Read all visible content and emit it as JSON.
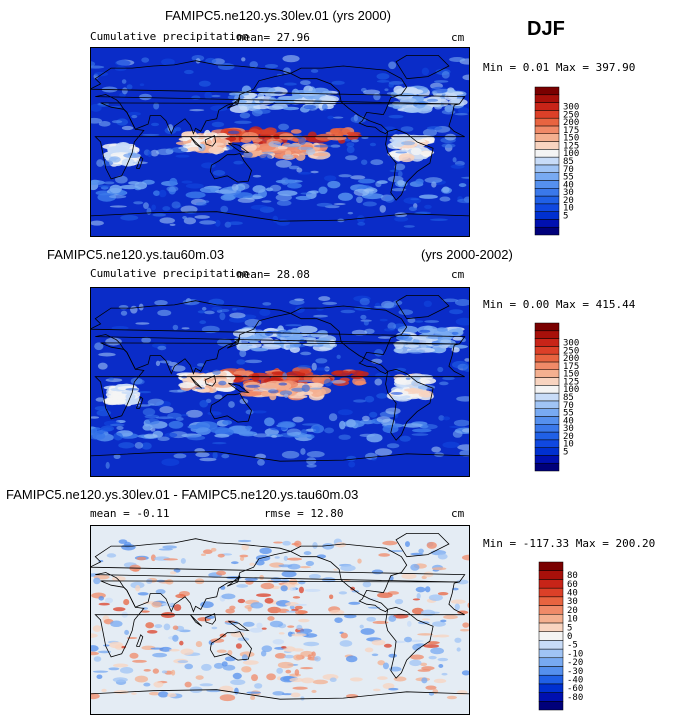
{
  "season": "DJF",
  "colors": {
    "precip_scale": [
      "#00007a",
      "#0010b0",
      "#0030d0",
      "#1048e0",
      "#2060e6",
      "#3a78ea",
      "#5590ee",
      "#78aaf2",
      "#a0c4f5",
      "#c8dcf8",
      "#f4f4f4",
      "#f8d4c0",
      "#f4b090",
      "#f08a68",
      "#e86440",
      "#dc4028",
      "#c82418",
      "#a8100a",
      "#7a0000"
    ],
    "diff_scale": [
      "#00007a",
      "#0010b0",
      "#0030d0",
      "#2060e6",
      "#5590ee",
      "#78aaf2",
      "#a0c4f5",
      "#c8dcf8",
      "#f4f4f4",
      "#f8d4c0",
      "#f4b090",
      "#f08a68",
      "#e86440",
      "#dc4028",
      "#c82418",
      "#a8100a",
      "#7a0000"
    ],
    "ocean_base": "#0a2cc8",
    "diff_base": "#e4ecf4"
  },
  "panels": [
    {
      "title": "FAMIPC5.ne120.ys.30lev.01 (yrs 2000)",
      "title_right": "",
      "subtitle": "Cumulative precipitation",
      "mean_text": "mean=  27.96",
      "rmse_text": "",
      "units": "cm",
      "minmax": "Min =   0.01 Max = 397.90"
    },
    {
      "title": "FAMIPC5.ne120.ys.tau60m.03",
      "title_right": "(yrs 2000-2002)",
      "subtitle": "Cumulative precipitation",
      "mean_text": "mean=  28.08",
      "rmse_text": "",
      "units": "cm",
      "minmax": "Min =   0.00 Max = 415.44"
    },
    {
      "title": "FAMIPC5.ne120.ys.30lev.01 - FAMIPC5.ne120.ys.tau60m.03",
      "title_right": "",
      "subtitle": "",
      "mean_text": "mean =  -0.11",
      "rmse_text": "rmse =  12.80",
      "units": "cm",
      "minmax": "Min = -117.33 Max = 200.20"
    }
  ],
  "chart_data": [
    {
      "type": "heatmap",
      "title": "FAMIPC5.ne120.ys.30lev.01 (yrs 2000)",
      "subtitle": "Cumulative precipitation",
      "units": "cm",
      "mean": 27.96,
      "min": 0.01,
      "max": 397.9,
      "colorbar_levels": [
        5,
        10,
        20,
        30,
        40,
        55,
        70,
        85,
        100,
        125,
        150,
        175,
        200,
        250,
        300
      ]
    },
    {
      "type": "heatmap",
      "title": "FAMIPC5.ne120.ys.tau60m.03",
      "subtitle": "Cumulative precipitation",
      "period": "(yrs 2000-2002)",
      "units": "cm",
      "mean": 28.08,
      "min": 0.0,
      "max": 415.44,
      "colorbar_levels": [
        5,
        10,
        20,
        30,
        40,
        55,
        70,
        85,
        100,
        125,
        150,
        175,
        200,
        250,
        300
      ]
    },
    {
      "type": "heatmap",
      "title": "FAMIPC5.ne120.ys.30lev.01 - FAMIPC5.ne120.ys.tau60m.03",
      "units": "cm",
      "mean": -0.11,
      "rmse": 12.8,
      "min": -117.33,
      "max": 200.2,
      "colorbar_levels": [
        -80,
        -60,
        -40,
        -30,
        -20,
        -10,
        -5,
        0,
        5,
        10,
        20,
        30,
        40,
        60,
        80
      ]
    }
  ]
}
